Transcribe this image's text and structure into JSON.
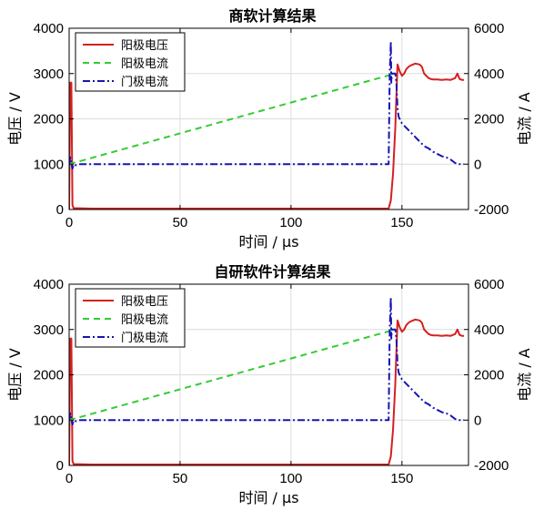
{
  "chart_data": [
    {
      "type": "line",
      "title": "商软计算结果",
      "xlabel": "时间 / μs",
      "ylabel_left": "电压 / V",
      "ylabel_right": "电流 / A",
      "xlim": [
        0,
        180
      ],
      "ylim_left": [
        0,
        4000
      ],
      "ylim_right": [
        -2000,
        6000
      ],
      "xticks": [
        "0",
        "50",
        "100",
        "150"
      ],
      "yticks_left": [
        "0",
        "1000",
        "2000",
        "3000",
        "4000"
      ],
      "yticks_right": [
        "-2000",
        "0",
        "2000",
        "4000",
        "6000"
      ],
      "grid": true,
      "legend_position": "top-left",
      "series": [
        {
          "name": "阳极电压",
          "axis": "left",
          "color": "#d42020",
          "dash": "solid",
          "x": [
            0,
            0.5,
            1,
            1.5,
            2,
            10,
            100,
            144,
            145,
            146,
            147,
            147.5,
            148,
            149,
            150,
            151,
            152,
            153,
            154,
            155,
            156,
            157,
            158,
            159,
            160,
            161,
            162,
            163,
            164,
            166,
            168,
            170,
            172,
            173,
            174,
            175,
            176,
            177,
            178
          ],
          "y": [
            0,
            2800,
            2800,
            100,
            30,
            20,
            20,
            20,
            200,
            800,
            1800,
            2500,
            3200,
            3050,
            2950,
            3000,
            3100,
            3150,
            3180,
            3200,
            3220,
            3210,
            3200,
            3150,
            3000,
            2950,
            2900,
            2880,
            2870,
            2870,
            2860,
            2870,
            2860,
            2880,
            2900,
            3000,
            2880,
            2860,
            2860
          ]
        },
        {
          "name": "阳极电流",
          "axis": "right",
          "color": "#33cc33",
          "dash": "dashed",
          "x": [
            0,
            147
          ],
          "y": [
            0,
            4000
          ]
        },
        {
          "name": "门极电流",
          "axis": "right",
          "color": "#1515b4",
          "dash": "dashdot",
          "x": [
            0,
            0.5,
            1,
            1.5,
            2,
            3,
            5,
            10,
            50,
            100,
            144,
            144.5,
            145,
            145.2,
            145.5,
            146,
            147,
            147.5,
            148,
            148.5,
            150,
            152,
            154,
            156,
            158,
            160,
            162,
            164,
            166,
            168,
            170,
            172,
            174,
            175,
            176,
            177,
            178
          ],
          "y": [
            0,
            300,
            0,
            -200,
            0,
            -50,
            0,
            0,
            0,
            0,
            0,
            4000,
            5400,
            3600,
            4000,
            4000,
            4000,
            3600,
            2500,
            2100,
            1800,
            1600,
            1400,
            1200,
            1000,
            800,
            700,
            550,
            450,
            350,
            300,
            200,
            50,
            0,
            0,
            0,
            0
          ]
        }
      ]
    },
    {
      "type": "line",
      "title": "自研软件计算结果",
      "xlabel": "时间 / μs",
      "ylabel_left": "电压 / V",
      "ylabel_right": "电流 / A",
      "xlim": [
        0,
        180
      ],
      "ylim_left": [
        0,
        4000
      ],
      "ylim_right": [
        -2000,
        6000
      ],
      "xticks": [
        "0",
        "50",
        "100",
        "150"
      ],
      "yticks_left": [
        "0",
        "1000",
        "2000",
        "3000",
        "4000"
      ],
      "yticks_right": [
        "-2000",
        "0",
        "2000",
        "4000",
        "6000"
      ],
      "grid": true,
      "legend_position": "top-left",
      "series": [
        {
          "name": "阳极电压",
          "axis": "left",
          "color": "#d42020",
          "dash": "solid",
          "x": [
            0,
            0.5,
            1,
            1.5,
            2,
            10,
            100,
            144,
            145,
            146,
            147,
            147.5,
            148,
            149,
            150,
            151,
            152,
            153,
            154,
            155,
            156,
            157,
            158,
            159,
            160,
            161,
            162,
            163,
            164,
            166,
            168,
            170,
            172,
            173,
            174,
            175,
            176,
            177,
            178
          ],
          "y": [
            0,
            2800,
            2800,
            100,
            30,
            20,
            20,
            20,
            200,
            800,
            1800,
            2500,
            3200,
            3050,
            2950,
            3000,
            3100,
            3150,
            3180,
            3200,
            3220,
            3210,
            3200,
            3150,
            3000,
            2950,
            2900,
            2880,
            2870,
            2870,
            2860,
            2870,
            2860,
            2880,
            2900,
            3000,
            2880,
            2860,
            2860
          ]
        },
        {
          "name": "阳极电流",
          "axis": "right",
          "color": "#33cc33",
          "dash": "dashed",
          "x": [
            0,
            147
          ],
          "y": [
            0,
            4000
          ]
        },
        {
          "name": "门极电流",
          "axis": "right",
          "color": "#1515b4",
          "dash": "dashdot",
          "x": [
            0,
            0.5,
            1,
            1.5,
            2,
            3,
            5,
            10,
            50,
            100,
            144,
            144.5,
            145,
            145.2,
            145.5,
            146,
            147,
            147.5,
            148,
            148.5,
            150,
            152,
            154,
            156,
            158,
            160,
            162,
            164,
            166,
            168,
            170,
            172,
            174,
            175,
            176,
            177,
            178
          ],
          "y": [
            0,
            300,
            0,
            -200,
            0,
            -50,
            0,
            0,
            0,
            0,
            0,
            4000,
            5400,
            3600,
            4000,
            4000,
            4000,
            3600,
            2500,
            2100,
            1800,
            1600,
            1400,
            1200,
            1000,
            800,
            700,
            550,
            450,
            350,
            300,
            200,
            50,
            0,
            0,
            0,
            0
          ]
        }
      ]
    }
  ]
}
